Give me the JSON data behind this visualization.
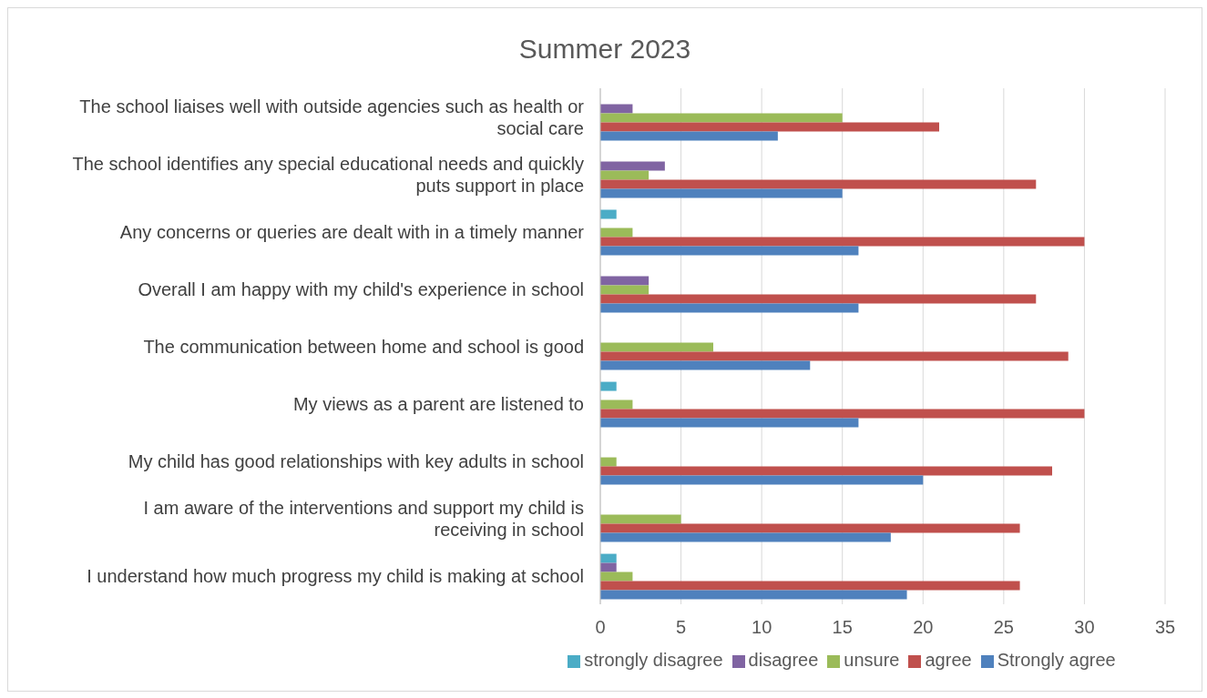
{
  "chart_data": {
    "type": "bar",
    "orientation": "horizontal",
    "title": "Summer 2023",
    "categories": [
      "The school liaises well with outside agencies such as health or social care",
      "The school identifies any special educational needs and quickly puts support in place",
      "Any concerns or queries are dealt with in a timely manner",
      "Overall I am happy with my child's experience in school",
      "The communication between home and school is good",
      "My views as a parent are listened to",
      "My child has good relationships with key adults in school",
      "I am aware of the interventions and support my child is receiving in school",
      "I understand how much progress my child is making at school"
    ],
    "series": [
      {
        "name": "strongly disagree",
        "color": "#4bacc6",
        "values": [
          null,
          null,
          1,
          null,
          null,
          1,
          null,
          null,
          1
        ]
      },
      {
        "name": "disagree",
        "color": "#8064a2",
        "values": [
          2,
          4,
          null,
          3,
          null,
          null,
          null,
          null,
          1
        ]
      },
      {
        "name": "unsure",
        "color": "#9bbb59",
        "values": [
          15,
          3,
          2,
          3,
          7,
          2,
          1,
          5,
          2
        ]
      },
      {
        "name": "agree",
        "color": "#c0504d",
        "values": [
          21,
          27,
          30,
          27,
          29,
          30,
          28,
          26,
          26
        ]
      },
      {
        "name": "Strongly agree",
        "color": "#4f81bd",
        "values": [
          11,
          15,
          16,
          16,
          13,
          16,
          20,
          18,
          19
        ]
      }
    ],
    "xlim": [
      0,
      35
    ],
    "xticks": [
      0,
      5,
      10,
      15,
      20,
      25,
      30,
      35
    ],
    "grid": "x",
    "legend": "bottom"
  }
}
